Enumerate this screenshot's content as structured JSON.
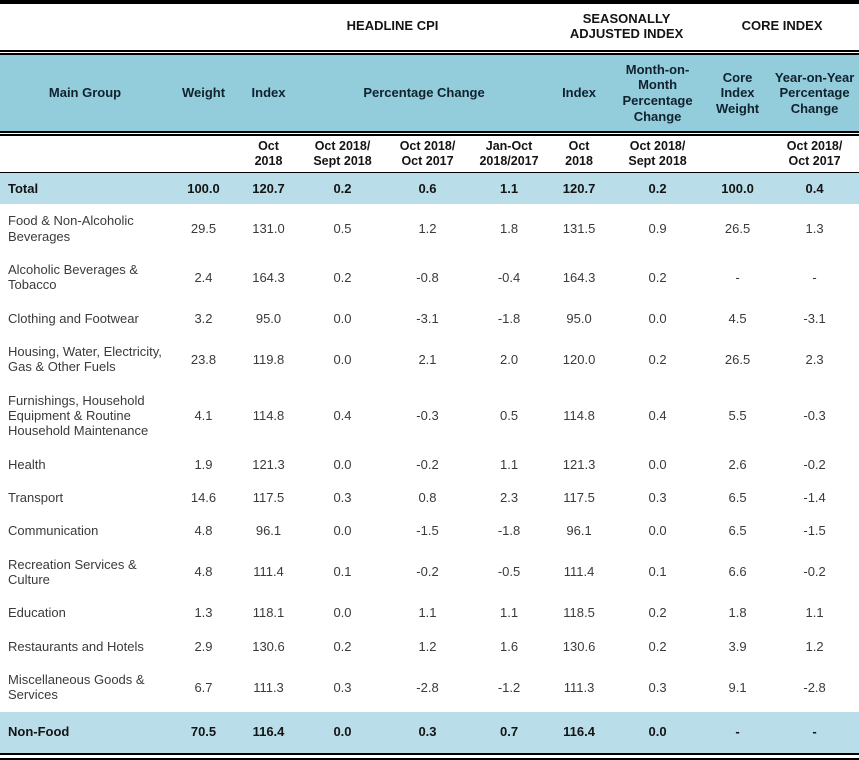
{
  "colors": {
    "header_bg": "#93CCDB",
    "highlight_bg": "#B9DEE9",
    "border": "#000000"
  },
  "header": {
    "band": {
      "headline": "HEADLINE CPI",
      "seasonally_adjusted": "SEASONALLY\nADJUSTED INDEX",
      "core": "CORE INDEX"
    },
    "columns": {
      "main_group": "Main Group",
      "weight": "Weight",
      "index": "Index",
      "percentage_change": "Percentage Change",
      "sa_index": "Index",
      "sa_mom": "Month-on-Month Percentage Change",
      "core_weight": "Core Index Weight",
      "core_yoy": "Year-on-Year Percentage Change"
    },
    "subcolumns": [
      "",
      "",
      "Oct\n2018",
      "Oct 2018/\nSept 2018",
      "Oct 2018/\nOct 2017",
      "Jan-Oct\n2018/2017",
      "Oct\n2018",
      "Oct 2018/\nSept 2018",
      "",
      "Oct 2018/\nOct 2017"
    ]
  },
  "rows": [
    {
      "label": "Total",
      "highlight": true,
      "values": [
        "100.0",
        "120.7",
        "0.2",
        "0.6",
        "1.1",
        "120.7",
        "0.2",
        "100.0",
        "0.4"
      ]
    },
    {
      "label": "Food & Non-Alcoholic Beverages",
      "highlight": false,
      "values": [
        "29.5",
        "131.0",
        "0.5",
        "1.2",
        "1.8",
        "131.5",
        "0.9",
        "26.5",
        "1.3"
      ]
    },
    {
      "label": "Alcoholic Beverages & Tobacco",
      "highlight": false,
      "values": [
        "2.4",
        "164.3",
        "0.2",
        "-0.8",
        "-0.4",
        "164.3",
        "0.2",
        "-",
        "-"
      ]
    },
    {
      "label": "Clothing and Footwear",
      "highlight": false,
      "values": [
        "3.2",
        "95.0",
        "0.0",
        "-3.1",
        "-1.8",
        "95.0",
        "0.0",
        "4.5",
        "-3.1"
      ]
    },
    {
      "label": "Housing, Water, Electricity, Gas & Other Fuels",
      "highlight": false,
      "values": [
        "23.8",
        "119.8",
        "0.0",
        "2.1",
        "2.0",
        "120.0",
        "0.2",
        "26.5",
        "2.3"
      ]
    },
    {
      "label": "Furnishings, Household Equipment  & Routine Household Maintenance",
      "highlight": false,
      "values": [
        "4.1",
        "114.8",
        "0.4",
        "-0.3",
        "0.5",
        "114.8",
        "0.4",
        "5.5",
        "-0.3"
      ]
    },
    {
      "label": "Health",
      "highlight": false,
      "values": [
        "1.9",
        "121.3",
        "0.0",
        "-0.2",
        "1.1",
        "121.3",
        "0.0",
        "2.6",
        "-0.2"
      ]
    },
    {
      "label": "Transport",
      "highlight": false,
      "values": [
        "14.6",
        "117.5",
        "0.3",
        "0.8",
        "2.3",
        "117.5",
        "0.3",
        "6.5",
        "-1.4"
      ]
    },
    {
      "label": "Communication",
      "highlight": false,
      "values": [
        "4.8",
        "96.1",
        "0.0",
        "-1.5",
        "-1.8",
        "96.1",
        "0.0",
        "6.5",
        "-1.5"
      ]
    },
    {
      "label": "Recreation Services & Culture",
      "highlight": false,
      "values": [
        "4.8",
        "111.4",
        "0.1",
        "-0.2",
        "-0.5",
        "111.4",
        "0.1",
        "6.6",
        "-0.2"
      ]
    },
    {
      "label": "Education",
      "highlight": false,
      "values": [
        "1.3",
        "118.1",
        "0.0",
        "1.1",
        "1.1",
        "118.5",
        "0.2",
        "1.8",
        "1.1"
      ]
    },
    {
      "label": "Restaurants and Hotels",
      "highlight": false,
      "values": [
        "2.9",
        "130.6",
        "0.2",
        "1.2",
        "1.6",
        "130.6",
        "0.2",
        "3.9",
        "1.2"
      ]
    },
    {
      "label": "Miscellaneous Goods & Services",
      "highlight": false,
      "values": [
        "6.7",
        "111.3",
        "0.3",
        "-2.8",
        "-1.2",
        "111.3",
        "0.3",
        "9.1",
        "-2.8"
      ]
    },
    {
      "label": "Non-Food",
      "highlight": true,
      "values": [
        "70.5",
        "116.4",
        "0.0",
        "0.3",
        "0.7",
        "116.4",
        "0.0",
        "-",
        "-"
      ]
    }
  ]
}
